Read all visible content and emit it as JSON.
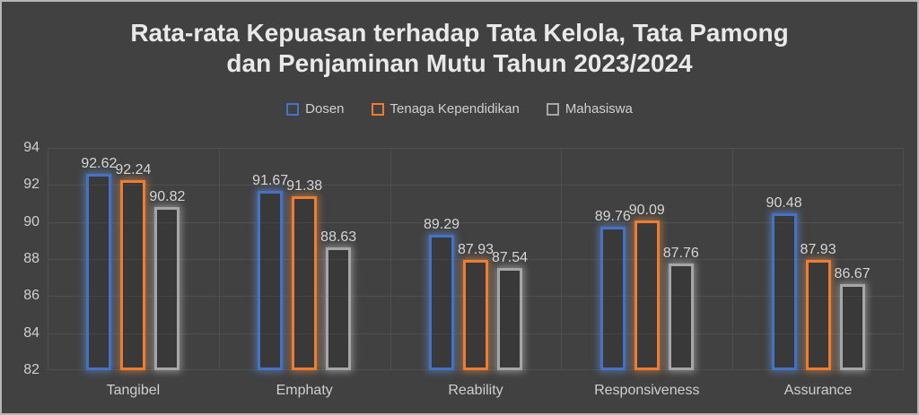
{
  "title": {
    "line1": "Rata-rata Kepuasan terhadap Tata Kelola, Tata Pamong",
    "line2": "dan Penjaminan Mutu Tahun 2023/2024"
  },
  "chart_data": {
    "type": "bar",
    "title": "Rata-rata Kepuasan terhadap Tata Kelola, Tata Pamong dan Penjaminan Mutu Tahun 2023/2024",
    "categories": [
      "Tangibel",
      "Emphaty",
      "Reability",
      "Responsiveness",
      "Assurance"
    ],
    "series": [
      {
        "name": "Dosen",
        "color": "#4472C4",
        "glow": "rgba(100,145,220,0.55)",
        "values": [
          92.62,
          91.67,
          89.29,
          89.76,
          90.48
        ]
      },
      {
        "name": "Tenaga Kependidikan",
        "color": "#ED7D31",
        "glow": "rgba(240,150,80,0.50)",
        "values": [
          92.24,
          91.38,
          87.93,
          90.09,
          87.93
        ]
      },
      {
        "name": "Mahasiswa",
        "color": "#A6A6A6",
        "glow": "rgba(225,225,225,0.45)",
        "values": [
          90.82,
          88.63,
          87.54,
          87.76,
          86.67
        ]
      }
    ],
    "ylim": [
      82,
      94
    ],
    "yticks": [
      82,
      84,
      86,
      88,
      90,
      92,
      94
    ],
    "xlabel": "",
    "ylabel": "",
    "grid": true,
    "legend_position": "top",
    "value_labels": "outside end, 2 decimals"
  },
  "colors": {
    "background": "#414141",
    "gridline": "#4F4F4F",
    "axis_text": "#CFCFCF",
    "value_label_text": "#D6D6D6",
    "title_text": "#E9E9E9",
    "frame_border": "#B6B6B6",
    "series_blue": "#4472C4",
    "series_orange": "#ED7D31",
    "series_gray": "#A6A6A6"
  }
}
